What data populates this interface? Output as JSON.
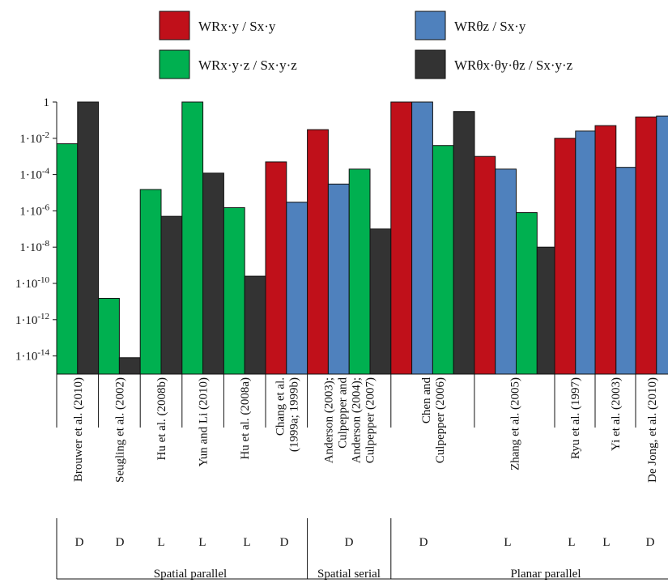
{
  "chart_data": {
    "type": "bar",
    "yscale": "log",
    "ylim": [
      1e-15,
      1
    ],
    "grid": false,
    "legend_position": "top",
    "y_tick_labels": [
      "1",
      "1·10-2",
      "1·10-4",
      "1·10-6",
      "1·10-8",
      "1·10-10",
      "1·10-12",
      "1·10-14"
    ],
    "series": [
      {
        "name": "WRx·y / Sx·y",
        "color": "#c0101a"
      },
      {
        "name": "WRθz / Sx·y",
        "color": "#4f81bd"
      },
      {
        "name": "WRx·y·z / Sx·y·z",
        "color": "#00b050"
      },
      {
        "name": "WRθx·θy·θz / Sx·y·z",
        "color": "#333333"
      }
    ],
    "columns": [
      {
        "study": "Brouwer et al. (2010)",
        "dof_type": "D",
        "bars": [
          {
            "series": 2,
            "value": 0.005
          },
          {
            "series": 3,
            "value": 1
          }
        ]
      },
      {
        "study": "Seugling et al. (2002)",
        "dof_type": "D",
        "bars": [
          {
            "series": 2,
            "value": 1.5e-11
          },
          {
            "series": 3,
            "value": 8e-15
          }
        ]
      },
      {
        "study": "Hu et al. (2008b)",
        "dof_type": "L",
        "bars": [
          {
            "series": 2,
            "value": 1.5e-05
          },
          {
            "series": 3,
            "value": 5e-07
          }
        ]
      },
      {
        "study": "Yun and Li (2010)",
        "dof_type": "L",
        "bars": [
          {
            "series": 2,
            "value": 1
          },
          {
            "series": 3,
            "value": 0.00012
          }
        ]
      },
      {
        "study": "Hu et al. (2008a)",
        "dof_type": "L",
        "bars": [
          {
            "series": 2,
            "value": 1.5e-06
          },
          {
            "series": 3,
            "value": 2.5e-10
          }
        ]
      },
      {
        "study": "Chang et al. (1999a; 1999b)",
        "dof_type": "D",
        "bars": [
          {
            "series": 0,
            "value": 0.0005
          },
          {
            "series": 1,
            "value": 3e-06
          }
        ]
      },
      {
        "study": "Anderson (2003); Culpepper and Anderson (2004); Culpepper (2007)",
        "dof_type": "D",
        "bars": [
          {
            "series": 0,
            "value": 0.03
          },
          {
            "series": 1,
            "value": 3e-05
          },
          {
            "series": 2,
            "value": 0.0002
          },
          {
            "series": 3,
            "value": 1e-07
          }
        ]
      },
      {
        "study": "Chen and Culpepper (2006)",
        "dof_type": "D",
        "bars": [
          {
            "series": 0,
            "value": 1
          },
          {
            "series": 1,
            "value": 1
          },
          {
            "series": 2,
            "value": 0.004
          },
          {
            "series": 3,
            "value": 0.3
          }
        ]
      },
      {
        "study": "Zhang et al. (2005)",
        "dof_type": "L",
        "bars": [
          {
            "series": 0,
            "value": 0.001
          },
          {
            "series": 1,
            "value": 0.0002
          },
          {
            "series": 2,
            "value": 8e-07
          },
          {
            "series": 3,
            "value": 1e-08
          }
        ]
      },
      {
        "study": "Ryu et al. (1997)",
        "dof_type": "L",
        "bars": [
          {
            "series": 0,
            "value": 0.01
          },
          {
            "series": 1,
            "value": 0.025
          }
        ]
      },
      {
        "study": "Yi et al. (2003)",
        "dof_type": "L",
        "bars": [
          {
            "series": 0,
            "value": 0.05
          },
          {
            "series": 1,
            "value": 0.00025
          }
        ]
      },
      {
        "study": "De Jong, et al. (2010)",
        "dof_type": "D",
        "bars": [
          {
            "series": 0,
            "value": 0.15
          },
          {
            "series": 1,
            "value": 0.17
          }
        ]
      }
    ],
    "groups": [
      {
        "label": "Spatial parallel"
      },
      {
        "label": "Spatial serial"
      },
      {
        "label": "Planar parallel"
      }
    ]
  }
}
